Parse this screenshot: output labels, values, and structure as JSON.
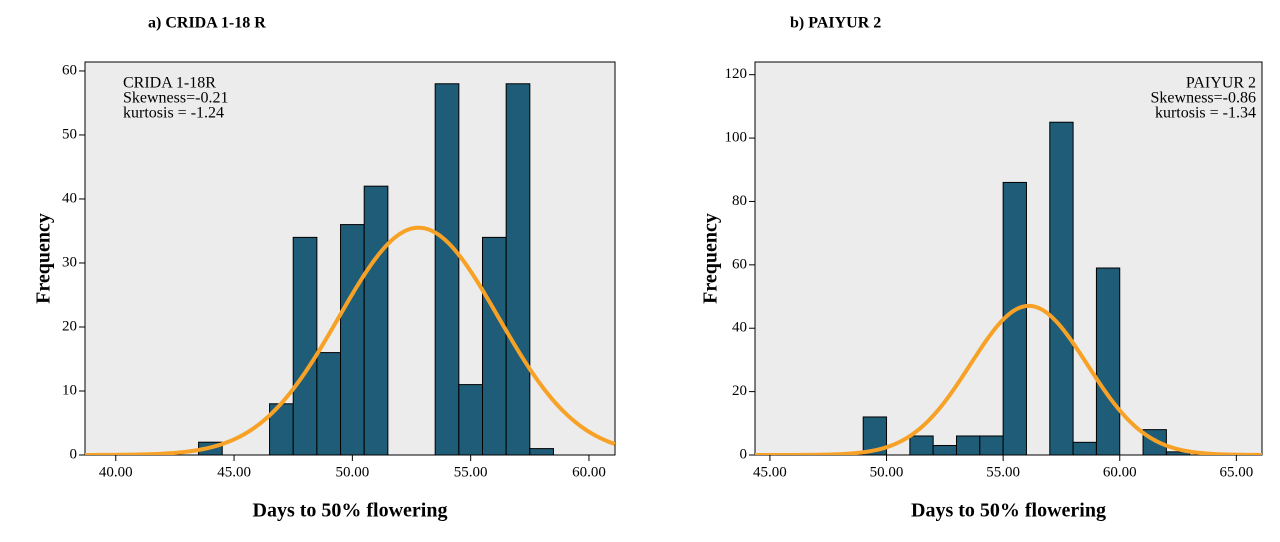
{
  "chart_data": [
    {
      "type": "histogram",
      "subtitle": "a) CRIDA 1-18 R",
      "x_label": "Days to 50% flowering",
      "y_label": "Frequency",
      "bins": [
        43.5,
        44.5,
        45.5,
        46.5,
        47.5,
        48.5,
        49.5,
        50.5,
        51.5,
        52.5,
        53.5,
        54.5,
        55.5,
        56.5,
        57.5,
        58.5
      ],
      "values": [
        2,
        0,
        0,
        8,
        34,
        16,
        36,
        42,
        0,
        0,
        58,
        11,
        34,
        58,
        1
      ],
      "color": "#1f5c78",
      "curve": {
        "mean": 52.8,
        "sd": 3.37,
        "color": "#f7a226"
      },
      "annotations": [
        "CRIDA 1-18R",
        "Skewness=-0.21",
        "kurtosis = -1.24"
      ],
      "annotation_corner": "upper left",
      "xlim": [
        38.7,
        61.1
      ],
      "xticks": [
        {
          "value": 40,
          "label": "40.00"
        },
        {
          "value": 45,
          "label": "45.00"
        },
        {
          "value": 50,
          "label": "50.00"
        },
        {
          "value": 55,
          "label": "55.00"
        },
        {
          "value": 60,
          "label": "60.00"
        }
      ],
      "ylim": [
        0,
        61.4
      ],
      "yticks": [
        0,
        10,
        20,
        30,
        40,
        50,
        60
      ]
    },
    {
      "type": "histogram",
      "subtitle": "b) PAIYUR 2",
      "x_label": "Days to 50% flowering",
      "y_label": "Frequency",
      "bins": [
        49,
        50,
        51,
        52,
        53,
        54,
        55,
        56,
        57,
        58,
        59,
        60,
        61,
        62,
        63
      ],
      "values": [
        12,
        0,
        6,
        3,
        6,
        6,
        86,
        0,
        105,
        4,
        59,
        0,
        8,
        1
      ],
      "color": "#1f5c78",
      "curve": {
        "mean": 56.1,
        "sd": 2.51,
        "color": "#f7a226"
      },
      "annotations": [
        "PAIYUR 2",
        "Skewness=-0.86",
        "kurtosis = -1.34"
      ],
      "annotation_corner": "upper right",
      "xlim": [
        44.36,
        66.1
      ],
      "xticks": [
        {
          "value": 45,
          "label": "45.00"
        },
        {
          "value": 50,
          "label": "50.00"
        },
        {
          "value": 55,
          "label": "55.00"
        },
        {
          "value": 60,
          "label": "60.00"
        },
        {
          "value": 65,
          "label": "65.00"
        }
      ],
      "ylim": [
        0,
        124
      ],
      "yticks": [
        0,
        20,
        40,
        60,
        80,
        100,
        120
      ]
    }
  ]
}
